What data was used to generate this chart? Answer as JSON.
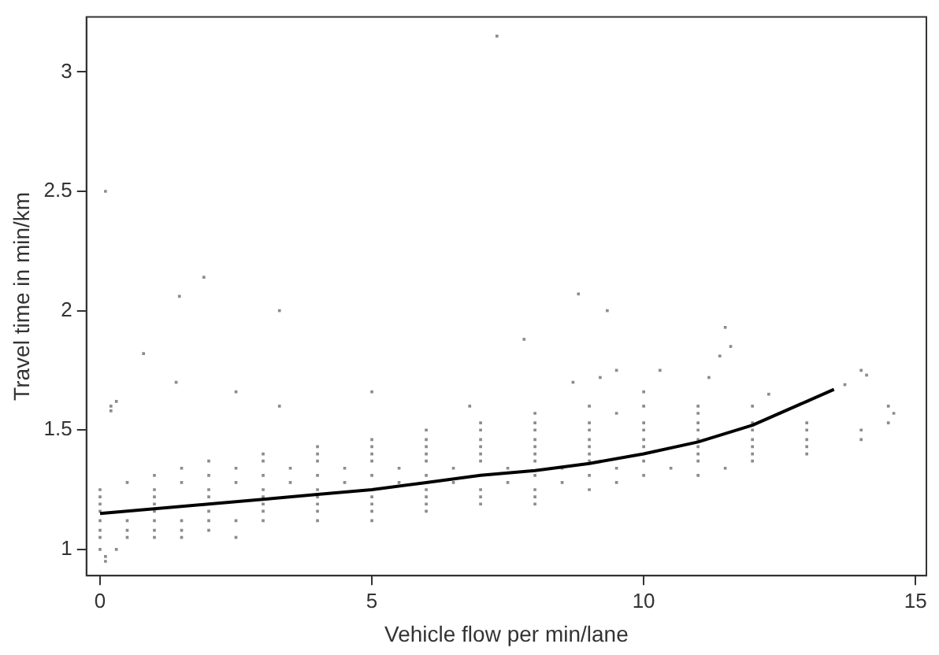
{
  "chart_data": {
    "type": "scatter",
    "xlabel": "Vehicle flow per min/lane",
    "ylabel": "Travel time in min/km",
    "xlim": [
      -0.25,
      15.2
    ],
    "ylim": [
      0.89,
      3.23
    ],
    "xticks": [
      0,
      5,
      10,
      15
    ],
    "yticks": [
      1,
      1.5,
      2,
      2.5,
      3
    ],
    "grid": false,
    "marker": "square",
    "series": [
      {
        "color": "#8c8c8c",
        "x": [
          0,
          0.3,
          0.1,
          0.1,
          0,
          0.5,
          1,
          1.5,
          2.5,
          0,
          0.5,
          1,
          1.5,
          2,
          0,
          0.5,
          1,
          1.5,
          2,
          2.5,
          3,
          4,
          5,
          0,
          1,
          2,
          3,
          4,
          5,
          6,
          0,
          1,
          3,
          4,
          5,
          6,
          7,
          8,
          0,
          1,
          2,
          3,
          4,
          5,
          6,
          7,
          8,
          0,
          1,
          2,
          3,
          4,
          6,
          7,
          8,
          9,
          0.5,
          1.5,
          2.5,
          3.5,
          4.5,
          5.5,
          6.5,
          7.5,
          8.5,
          9.5,
          1,
          2,
          3,
          4,
          5,
          6,
          8,
          9,
          10,
          11,
          1.5,
          2.5,
          3.5,
          4.5,
          5.5,
          6.5,
          7.5,
          8.5,
          9.5,
          10.5,
          11.5,
          2,
          3,
          4,
          5,
          6,
          7,
          8,
          9,
          10,
          11,
          12,
          3,
          4,
          5,
          6,
          7,
          8,
          9,
          11,
          12,
          13,
          4,
          5,
          6,
          7,
          8,
          9,
          10,
          11,
          12,
          13,
          5,
          6,
          7,
          8,
          9,
          10,
          11,
          12,
          13,
          14,
          6,
          7,
          8,
          9,
          10,
          11,
          12,
          13,
          14,
          7,
          8,
          9,
          10,
          11,
          12,
          13,
          14.5,
          8,
          9.5,
          11,
          12.5,
          14.6,
          0.2,
          3.3,
          9,
          10,
          11,
          12,
          14.5,
          0.3,
          0.2,
          1.4,
          2.5,
          0.8,
          5,
          6.8,
          8.7,
          9.2,
          11.2,
          11.6,
          10,
          12.3,
          13.7,
          14.1,
          7.8,
          9.5,
          10.3,
          7.3,
          0.1,
          1.91,
          1.46,
          3.3,
          8.8,
          9.33,
          11.5,
          11.4,
          14
        ],
        "values": [
          1,
          1,
          0.95,
          0.97,
          1.05,
          1.05,
          1.05,
          1.05,
          1.05,
          1.08,
          1.08,
          1.08,
          1.08,
          1.08,
          1.12,
          1.12,
          1.12,
          1.12,
          1.12,
          1.12,
          1.12,
          1.12,
          1.12,
          1.16,
          1.16,
          1.16,
          1.16,
          1.16,
          1.16,
          1.16,
          1.19,
          1.19,
          1.19,
          1.19,
          1.19,
          1.19,
          1.19,
          1.19,
          1.22,
          1.22,
          1.22,
          1.22,
          1.22,
          1.22,
          1.22,
          1.22,
          1.22,
          1.25,
          1.25,
          1.25,
          1.25,
          1.25,
          1.25,
          1.25,
          1.25,
          1.25,
          1.28,
          1.28,
          1.28,
          1.28,
          1.28,
          1.28,
          1.28,
          1.28,
          1.28,
          1.28,
          1.31,
          1.31,
          1.31,
          1.31,
          1.31,
          1.31,
          1.31,
          1.31,
          1.31,
          1.31,
          1.34,
          1.34,
          1.34,
          1.34,
          1.34,
          1.34,
          1.34,
          1.34,
          1.34,
          1.34,
          1.34,
          1.37,
          1.37,
          1.37,
          1.37,
          1.37,
          1.37,
          1.37,
          1.37,
          1.37,
          1.37,
          1.37,
          1.4,
          1.4,
          1.4,
          1.4,
          1.4,
          1.4,
          1.4,
          1.4,
          1.4,
          1.4,
          1.43,
          1.43,
          1.43,
          1.43,
          1.43,
          1.43,
          1.43,
          1.43,
          1.43,
          1.43,
          1.46,
          1.46,
          1.46,
          1.46,
          1.46,
          1.46,
          1.46,
          1.46,
          1.46,
          1.46,
          1.5,
          1.5,
          1.5,
          1.5,
          1.5,
          1.5,
          1.5,
          1.5,
          1.5,
          1.53,
          1.53,
          1.53,
          1.53,
          1.53,
          1.53,
          1.53,
          1.53,
          1.57,
          1.57,
          1.57,
          1.57,
          1.57,
          1.6,
          1.6,
          1.6,
          1.6,
          1.6,
          1.6,
          1.6,
          1.62,
          1.58,
          1.7,
          1.66,
          1.82,
          1.66,
          1.6,
          1.7,
          1.72,
          1.72,
          1.85,
          1.66,
          1.65,
          1.69,
          1.73,
          1.88,
          1.75,
          1.75,
          3.15,
          2.5,
          2.14,
          2.06,
          2,
          2.07,
          2,
          1.93,
          1.81,
          1.75
        ]
      },
      {
        "type": "line",
        "color": "#000000",
        "marker": "none",
        "x": [
          0,
          1,
          2,
          3,
          4,
          5,
          6,
          7,
          8,
          9,
          10,
          11,
          12,
          13,
          13.5
        ],
        "values": [
          1.15,
          1.17,
          1.19,
          1.21,
          1.23,
          1.25,
          1.28,
          1.31,
          1.33,
          1.36,
          1.4,
          1.45,
          1.52,
          1.62,
          1.67
        ]
      }
    ]
  }
}
